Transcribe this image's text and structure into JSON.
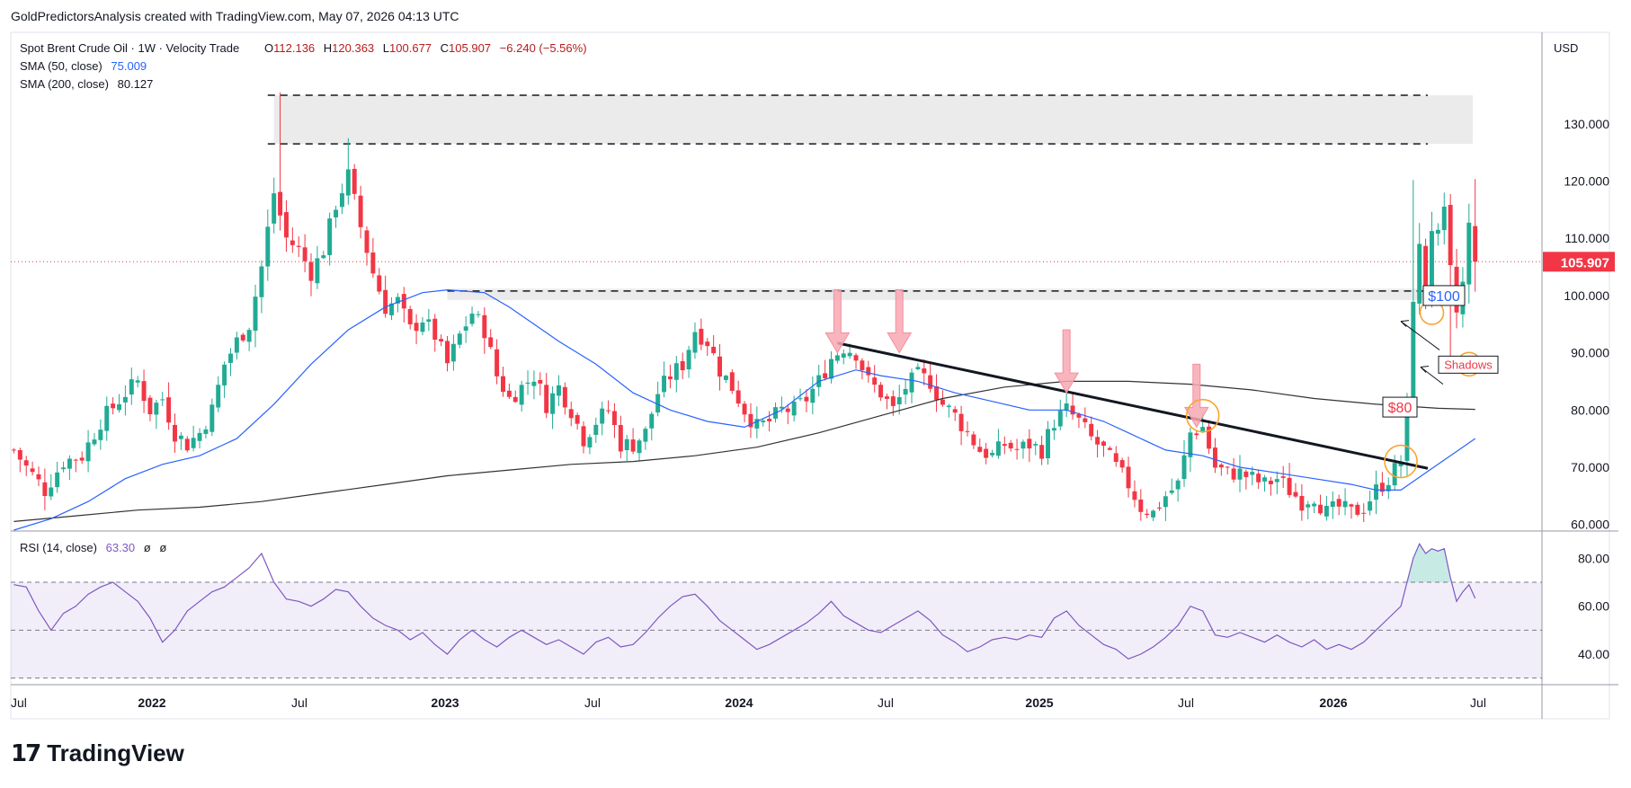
{
  "attribution": "GoldPredictorsAnalysis created with TradingView.com, May 07, 2026 04:13 UTC",
  "legend": {
    "title": "Spot Brent Crude Oil · 1W · Velocity Trade",
    "ohlc": {
      "o_label": "O",
      "o": "112.136",
      "h_label": "H",
      "h": "120.363",
      "l_label": "L",
      "l": "100.677",
      "c_label": "C",
      "c": "105.907",
      "change": "−6.240 (−5.56%)"
    },
    "sma50": {
      "label": "SMA (50, close)",
      "value": "75.009",
      "color": "#2962ff"
    },
    "sma200": {
      "label": "SMA (200, close)",
      "value": "80.127",
      "color": "#333333"
    },
    "rsi": {
      "label": "RSI (14, close)",
      "value": "63.30",
      "extra1": "ø",
      "extra2": "ø",
      "color": "#7e57c2"
    }
  },
  "currency": "USD",
  "last_price": "105.907",
  "annotations": {
    "level100": "$100",
    "level80": "$80",
    "shadows": "Shadows"
  },
  "colors": {
    "up": "#22ab94",
    "down": "#f23645",
    "sma50": "#2962ff",
    "sma200": "#333333",
    "rsi": "#7e57c2",
    "arrow": "#f7a8b2",
    "circle": "#f7a533"
  },
  "brand": "TradingView",
  "chart_data": {
    "type": "candlestick",
    "x_axis_labels": [
      "Jul",
      "2022",
      "Jul",
      "2023",
      "Jul",
      "2024",
      "Jul",
      "2025",
      "Jul",
      "2026",
      "Jul"
    ],
    "y_ticks": [
      "130.000",
      "120.000",
      "110.000",
      "100.000",
      "90.000",
      "80.000",
      "70.000",
      "60.000"
    ],
    "ylim": [
      59,
      146
    ],
    "rsi_ticks": [
      "80.00",
      "60.00",
      "40.00"
    ],
    "rsi_lim": [
      28,
      91
    ],
    "rsi_bands": [
      70,
      50,
      30
    ],
    "resistance_zone": [
      126.5,
      135
    ],
    "support_zone": [
      99.5,
      100.8
    ],
    "date_range": [
      "2021-07",
      "2026-05"
    ],
    "weekly_close_anchors": [
      [
        0,
        73
      ],
      [
        2,
        70
      ],
      [
        5,
        66
      ],
      [
        8,
        71
      ],
      [
        11,
        72
      ],
      [
        14,
        78
      ],
      [
        18,
        83
      ],
      [
        20,
        85
      ],
      [
        22,
        80
      ],
      [
        24,
        82
      ],
      [
        26,
        76
      ],
      [
        28,
        74
      ],
      [
        30,
        76
      ],
      [
        32,
        80
      ],
      [
        34,
        88
      ],
      [
        36,
        92
      ],
      [
        38,
        95
      ],
      [
        40,
        105
      ],
      [
        42,
        118
      ],
      [
        44,
        110
      ],
      [
        46,
        108
      ],
      [
        48,
        104
      ],
      [
        50,
        108
      ],
      [
        52,
        116
      ],
      [
        54,
        121
      ],
      [
        56,
        112
      ],
      [
        58,
        104
      ],
      [
        60,
        98
      ],
      [
        62,
        99
      ],
      [
        64,
        94
      ],
      [
        66,
        96
      ],
      [
        68,
        93
      ],
      [
        70,
        88
      ],
      [
        72,
        93
      ],
      [
        74,
        97
      ],
      [
        76,
        94
      ],
      [
        78,
        86
      ],
      [
        80,
        82
      ],
      [
        82,
        84
      ],
      [
        84,
        86
      ],
      [
        86,
        81
      ],
      [
        88,
        84
      ],
      [
        90,
        80
      ],
      [
        92,
        75
      ],
      [
        94,
        78
      ],
      [
        96,
        80
      ],
      [
        98,
        74
      ],
      [
        100,
        74
      ],
      [
        102,
        76
      ],
      [
        104,
        83
      ],
      [
        106,
        86
      ],
      [
        108,
        88
      ],
      [
        110,
        94
      ],
      [
        112,
        92
      ],
      [
        114,
        87
      ],
      [
        116,
        84
      ],
      [
        118,
        80
      ],
      [
        120,
        77
      ],
      [
        122,
        78
      ],
      [
        124,
        80
      ],
      [
        126,
        80
      ],
      [
        128,
        82
      ],
      [
        130,
        85
      ],
      [
        132,
        89
      ],
      [
        134,
        91
      ],
      [
        136,
        90
      ],
      [
        138,
        85
      ],
      [
        140,
        83
      ],
      [
        142,
        80
      ],
      [
        144,
        84
      ],
      [
        146,
        86
      ],
      [
        148,
        85
      ],
      [
        150,
        81
      ],
      [
        152,
        79
      ],
      [
        154,
        76
      ],
      [
        156,
        73
      ],
      [
        158,
        72
      ],
      [
        160,
        74
      ],
      [
        162,
        73
      ],
      [
        164,
        74
      ],
      [
        166,
        73
      ],
      [
        168,
        78
      ],
      [
        170,
        80
      ],
      [
        172,
        78
      ],
      [
        174,
        75
      ],
      [
        176,
        73
      ],
      [
        178,
        70
      ],
      [
        180,
        67
      ],
      [
        182,
        63
      ],
      [
        184,
        62
      ],
      [
        186,
        65
      ],
      [
        188,
        67
      ],
      [
        190,
        76
      ],
      [
        192,
        77
      ],
      [
        194,
        70
      ],
      [
        196,
        69
      ],
      [
        198,
        69
      ],
      [
        200,
        68
      ],
      [
        202,
        67
      ],
      [
        204,
        68
      ],
      [
        206,
        66
      ],
      [
        208,
        64
      ],
      [
        210,
        65
      ],
      [
        212,
        62
      ],
      [
        214,
        63
      ],
      [
        216,
        62
      ],
      [
        218,
        63
      ],
      [
        220,
        66
      ],
      [
        222,
        68
      ],
      [
        224,
        71
      ],
      [
        225,
        80
      ],
      [
        226,
        100
      ],
      [
        227,
        108
      ],
      [
        228,
        101
      ],
      [
        229,
        112
      ],
      [
        230,
        110
      ],
      [
        231,
        114
      ],
      [
        232,
        104
      ],
      [
        233,
        97
      ],
      [
        234,
        102
      ],
      [
        235,
        112
      ],
      [
        236,
        106
      ]
    ],
    "sma50_points": [
      [
        0,
        59
      ],
      [
        6,
        61
      ],
      [
        12,
        64
      ],
      [
        18,
        68
      ],
      [
        24,
        70.5
      ],
      [
        30,
        72
      ],
      [
        36,
        75
      ],
      [
        42,
        81
      ],
      [
        48,
        88
      ],
      [
        54,
        94
      ],
      [
        60,
        98
      ],
      [
        66,
        100.5
      ],
      [
        70,
        101
      ],
      [
        76,
        100.5
      ],
      [
        80,
        98
      ],
      [
        84,
        95
      ],
      [
        88,
        92
      ],
      [
        94,
        88
      ],
      [
        100,
        83
      ],
      [
        106,
        80
      ],
      [
        112,
        78
      ],
      [
        118,
        77
      ],
      [
        124,
        80
      ],
      [
        130,
        85
      ],
      [
        136,
        87
      ],
      [
        140,
        86
      ],
      [
        146,
        85
      ],
      [
        152,
        83
      ],
      [
        158,
        81.5
      ],
      [
        164,
        80
      ],
      [
        170,
        80
      ],
      [
        176,
        78
      ],
      [
        180,
        76
      ],
      [
        186,
        73
      ],
      [
        192,
        72
      ],
      [
        198,
        70
      ],
      [
        204,
        69
      ],
      [
        210,
        68
      ],
      [
        216,
        67
      ],
      [
        220,
        66
      ],
      [
        224,
        66
      ],
      [
        228,
        69
      ],
      [
        232,
        72
      ],
      [
        236,
        75
      ]
    ],
    "sma200_points": [
      [
        0,
        60.5
      ],
      [
        10,
        61.5
      ],
      [
        20,
        62.5
      ],
      [
        30,
        63
      ],
      [
        40,
        64
      ],
      [
        50,
        65.5
      ],
      [
        60,
        67
      ],
      [
        70,
        68.5
      ],
      [
        80,
        69.5
      ],
      [
        90,
        70.5
      ],
      [
        100,
        71
      ],
      [
        110,
        72
      ],
      [
        120,
        73.5
      ],
      [
        130,
        76
      ],
      [
        140,
        79
      ],
      [
        150,
        82
      ],
      [
        160,
        84
      ],
      [
        170,
        85
      ],
      [
        180,
        85
      ],
      [
        190,
        84.5
      ],
      [
        200,
        83.5
      ],
      [
        210,
        82
      ],
      [
        220,
        81
      ],
      [
        230,
        80.3
      ],
      [
        236,
        80.1
      ]
    ],
    "trendline": [
      [
        133,
        91.7
      ],
      [
        236,
        69.8
      ]
    ],
    "red_arrows_x": [
      133,
      143,
      170,
      191
    ],
    "rsi_points": [
      [
        0,
        69
      ],
      [
        2,
        68
      ],
      [
        4,
        58
      ],
      [
        6,
        50
      ],
      [
        8,
        57
      ],
      [
        10,
        60
      ],
      [
        12,
        65
      ],
      [
        14,
        68
      ],
      [
        16,
        70
      ],
      [
        18,
        66
      ],
      [
        20,
        62
      ],
      [
        22,
        55
      ],
      [
        24,
        45
      ],
      [
        26,
        50
      ],
      [
        28,
        58
      ],
      [
        30,
        62
      ],
      [
        32,
        66
      ],
      [
        34,
        68
      ],
      [
        36,
        72
      ],
      [
        38,
        76
      ],
      [
        40,
        82
      ],
      [
        42,
        70
      ],
      [
        44,
        63
      ],
      [
        46,
        62
      ],
      [
        48,
        60
      ],
      [
        50,
        63
      ],
      [
        52,
        67
      ],
      [
        54,
        66
      ],
      [
        56,
        60
      ],
      [
        58,
        55
      ],
      [
        60,
        52
      ],
      [
        62,
        50
      ],
      [
        64,
        46
      ],
      [
        66,
        49
      ],
      [
        68,
        44
      ],
      [
        70,
        40
      ],
      [
        72,
        46
      ],
      [
        74,
        50
      ],
      [
        76,
        46
      ],
      [
        78,
        43
      ],
      [
        80,
        47
      ],
      [
        82,
        50
      ],
      [
        84,
        47
      ],
      [
        86,
        44
      ],
      [
        88,
        46
      ],
      [
        90,
        43
      ],
      [
        92,
        40
      ],
      [
        94,
        45
      ],
      [
        96,
        47
      ],
      [
        98,
        43
      ],
      [
        100,
        44
      ],
      [
        102,
        49
      ],
      [
        104,
        55
      ],
      [
        106,
        60
      ],
      [
        108,
        64
      ],
      [
        110,
        65
      ],
      [
        112,
        60
      ],
      [
        114,
        54
      ],
      [
        116,
        50
      ],
      [
        118,
        46
      ],
      [
        120,
        42
      ],
      [
        122,
        44
      ],
      [
        124,
        47
      ],
      [
        126,
        50
      ],
      [
        128,
        53
      ],
      [
        130,
        57
      ],
      [
        132,
        62
      ],
      [
        134,
        56
      ],
      [
        136,
        53
      ],
      [
        138,
        50
      ],
      [
        140,
        49
      ],
      [
        142,
        52
      ],
      [
        144,
        55
      ],
      [
        146,
        58
      ],
      [
        148,
        54
      ],
      [
        150,
        48
      ],
      [
        152,
        45
      ],
      [
        154,
        41
      ],
      [
        156,
        43
      ],
      [
        158,
        46
      ],
      [
        160,
        47
      ],
      [
        162,
        46
      ],
      [
        164,
        48
      ],
      [
        166,
        47
      ],
      [
        168,
        55
      ],
      [
        170,
        58
      ],
      [
        172,
        52
      ],
      [
        174,
        48
      ],
      [
        176,
        44
      ],
      [
        178,
        42
      ],
      [
        180,
        38
      ],
      [
        182,
        40
      ],
      [
        184,
        43
      ],
      [
        186,
        47
      ],
      [
        188,
        52
      ],
      [
        190,
        60
      ],
      [
        192,
        58
      ],
      [
        194,
        48
      ],
      [
        196,
        47
      ],
      [
        198,
        49
      ],
      [
        200,
        47
      ],
      [
        202,
        45
      ],
      [
        204,
        48
      ],
      [
        206,
        45
      ],
      [
        208,
        43
      ],
      [
        210,
        46
      ],
      [
        212,
        42
      ],
      [
        214,
        44
      ],
      [
        216,
        42
      ],
      [
        218,
        45
      ],
      [
        220,
        50
      ],
      [
        222,
        55
      ],
      [
        224,
        60
      ],
      [
        225,
        70
      ],
      [
        226,
        80
      ],
      [
        227,
        86
      ],
      [
        228,
        82
      ],
      [
        229,
        84
      ],
      [
        230,
        83
      ],
      [
        231,
        84
      ],
      [
        232,
        72
      ],
      [
        233,
        62
      ],
      [
        234,
        66
      ],
      [
        235,
        69
      ],
      [
        236,
        63.3
      ]
    ]
  }
}
